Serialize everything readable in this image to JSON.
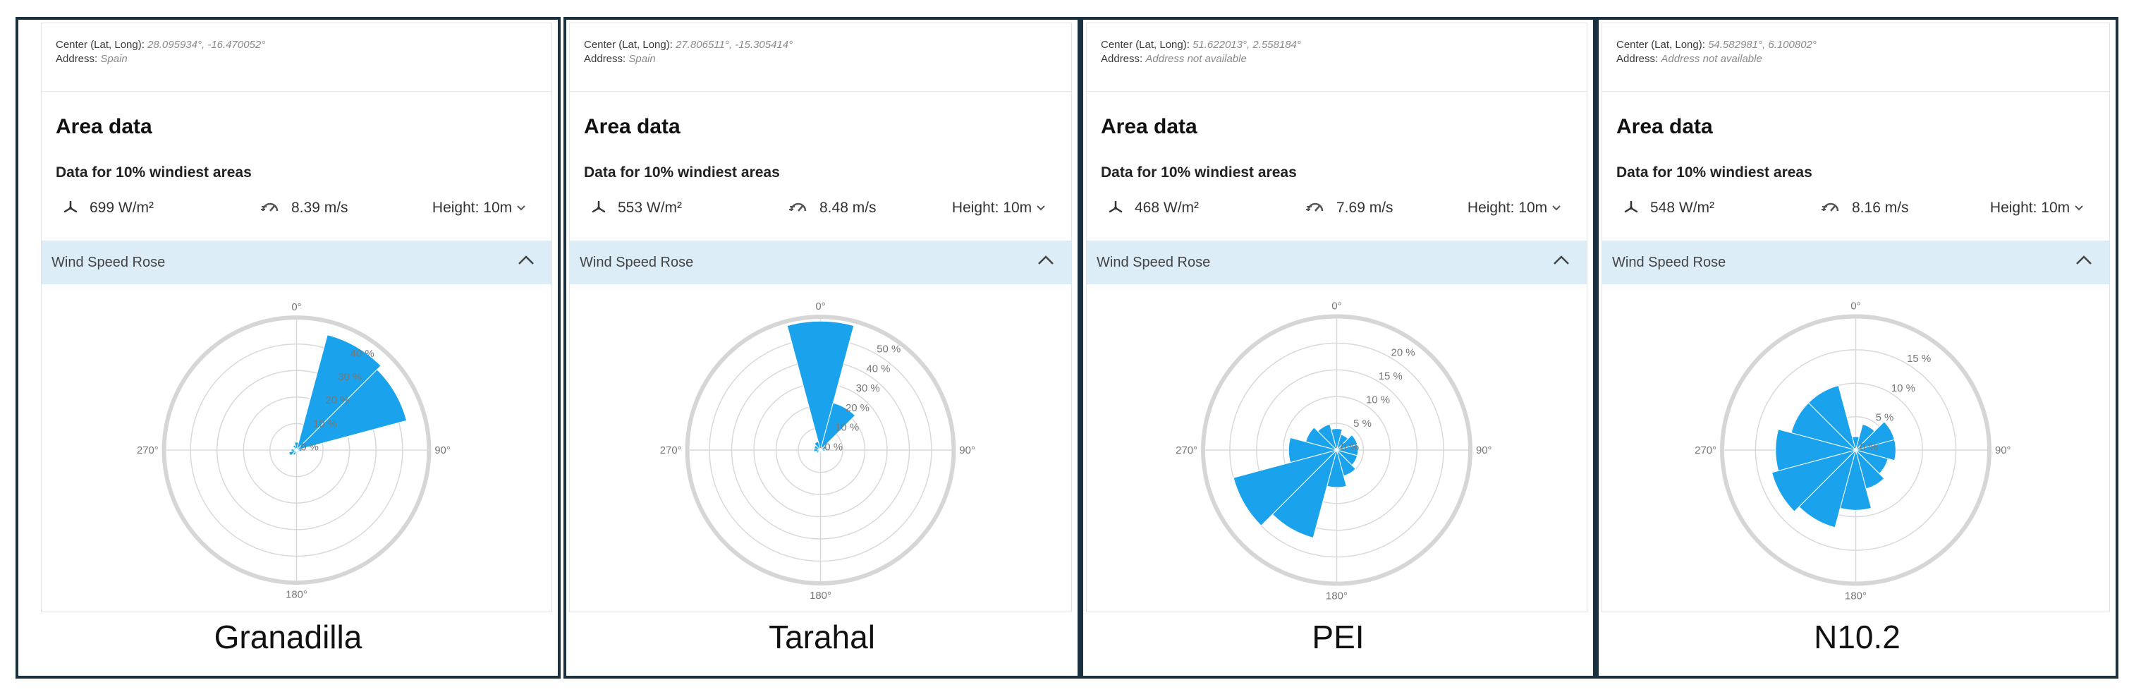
{
  "accent_color": "#1aa3ec",
  "panels": [
    {
      "site": "Granadilla",
      "center_label": "Center (Lat, Long):",
      "center_value": "28.095934°, -16.470052°",
      "address_label": "Address:",
      "address_value": "Spain",
      "area_title": "Area data",
      "area_subtitle": "Data for 10% windiest areas",
      "power_density": "699 W/m²",
      "power_icon": "wind-turbine-icon",
      "wind_speed": "8.39 m/s",
      "speed_icon": "wind-speed-icon",
      "height_label": "Height: 10m",
      "rose_title": "Wind Speed Rose",
      "chart_data": {
        "type": "polar-bar",
        "direction_labels": [
          "0°",
          "90°",
          "180°",
          "270°"
        ],
        "radial_ticks": [
          "0 %",
          "10 %",
          "20 %",
          "30 %",
          "40 %"
        ],
        "rmax": 50,
        "bin_width_deg": 30,
        "directions_deg": [
          0,
          30,
          60,
          90,
          120,
          150,
          180,
          210,
          240,
          270,
          300,
          330
        ],
        "values": [
          3,
          45,
          43,
          2,
          1,
          1,
          1,
          2,
          3,
          2,
          1,
          2
        ]
      }
    },
    {
      "site": "Tarahal",
      "center_label": "Center (Lat, Long):",
      "center_value": "27.806511°, -15.305414°",
      "address_label": "Address:",
      "address_value": "Spain",
      "area_title": "Area data",
      "area_subtitle": "Data for 10% windiest areas",
      "power_density": "553 W/m²",
      "power_icon": "wind-turbine-icon",
      "wind_speed": "8.48 m/s",
      "speed_icon": "wind-speed-icon",
      "height_label": "Height: 10m",
      "rose_title": "Wind Speed Rose",
      "chart_data": {
        "type": "polar-bar",
        "direction_labels": [
          "0°",
          "90°",
          "180°",
          "270°"
        ],
        "radial_ticks": [
          "0 %",
          "10 %",
          "20 %",
          "30 %",
          "40 %",
          "50 %"
        ],
        "rmax": 60,
        "bin_width_deg": 30,
        "directions_deg": [
          0,
          30,
          60,
          90,
          120,
          150,
          180,
          210,
          240,
          270,
          300,
          330
        ],
        "values": [
          58,
          22,
          3,
          2,
          1,
          1,
          1,
          1,
          2,
          3,
          3,
          4
        ]
      }
    },
    {
      "site": "PEI",
      "center_label": "Center (Lat, Long):",
      "center_value": "51.622013°, 2.558184°",
      "address_label": "Address:",
      "address_value": "Address not available",
      "area_title": "Area data",
      "area_subtitle": "Data for 10% windiest areas",
      "power_density": "468 W/m²",
      "power_icon": "wind-turbine-icon",
      "wind_speed": "7.69 m/s",
      "speed_icon": "wind-speed-icon",
      "height_label": "Height: 10m",
      "rose_title": "Wind Speed Rose",
      "chart_data": {
        "type": "polar-bar",
        "direction_labels": [
          "0°",
          "90°",
          "180°",
          "270°"
        ],
        "radial_ticks": [
          "0 %",
          "5 %",
          "10 %",
          "15 %",
          "20 %"
        ],
        "rmax": 25,
        "bin_width_deg": 30,
        "directions_deg": [
          0,
          30,
          60,
          90,
          120,
          150,
          180,
          210,
          240,
          270,
          300,
          330
        ],
        "values": [
          4,
          3,
          4,
          4,
          4,
          5,
          7,
          17,
          20,
          9,
          6,
          5
        ]
      }
    },
    {
      "site": "N10.2",
      "center_label": "Center (Lat, Long):",
      "center_value": "54.582981°, 6.100802°",
      "address_label": "Address:",
      "address_value": "Address not available",
      "area_title": "Area data",
      "area_subtitle": "Data for 10% windiest areas",
      "power_density": "548 W/m²",
      "power_icon": "wind-turbine-icon",
      "wind_speed": "8.16 m/s",
      "speed_icon": "wind-speed-icon",
      "height_label": "Height: 10m",
      "rose_title": "Wind Speed Rose",
      "chart_data": {
        "type": "polar-bar",
        "direction_labels": [
          "0°",
          "90°",
          "180°",
          "270°"
        ],
        "radial_ticks": [
          "0 %",
          "5 %",
          "10 %",
          "15 %"
        ],
        "rmax": 20,
        "bin_width_deg": 30,
        "directions_deg": [
          0,
          30,
          60,
          90,
          120,
          150,
          180,
          210,
          240,
          270,
          300,
          330
        ],
        "values": [
          2,
          4,
          6,
          6,
          5,
          6,
          9,
          12,
          13,
          12,
          10,
          10
        ]
      }
    }
  ]
}
